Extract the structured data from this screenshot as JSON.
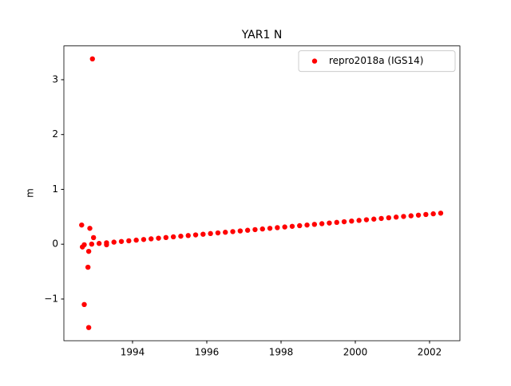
{
  "chart_data": {
    "type": "scatter",
    "title": "YAR1 N",
    "y_label": "m",
    "legend": "upper right",
    "xlim": [
      1992.151,
      2002.817
    ],
    "ylim": [
      -1.76,
      3.616
    ],
    "xticks": [
      1994,
      1996,
      1998,
      2000,
      2002
    ],
    "yticks": [
      {
        "value": -1,
        "label": "−1"
      },
      0,
      1,
      2,
      3
    ],
    "series": [
      {
        "name": "repro2018a (IGS14)",
        "color": "#ff0000",
        "x": [
          1992.7,
          1992.9,
          1993.1,
          1993.3,
          1993.5,
          1993.7,
          1993.9,
          1994.1,
          1994.3,
          1994.5,
          1994.7,
          1994.9,
          1995.1,
          1995.3,
          1995.5,
          1995.7,
          1995.9,
          1996.1,
          1996.3,
          1996.5,
          1996.7,
          1996.9,
          1997.1,
          1997.3,
          1997.5,
          1997.7,
          1997.9,
          1998.1,
          1998.3,
          1998.5,
          1998.7,
          1998.9,
          1999.1,
          1999.3,
          1999.5,
          1999.7,
          1999.9,
          2000.1,
          2000.3,
          2000.5,
          2000.7,
          2000.9,
          2001.1,
          2001.3,
          2001.5,
          2001.7,
          2001.9,
          2002.1,
          2002.3,
          1992.63,
          1992.7,
          1992.82,
          1992.8,
          1992.82,
          1992.85,
          1992.95,
          1992.92,
          1993.3,
          1992.65
        ],
        "values": [
          -0.01,
          0.002,
          0.014,
          0.026,
          0.038,
          0.05,
          0.062,
          0.074,
          0.086,
          0.098,
          0.11,
          0.122,
          0.134,
          0.146,
          0.158,
          0.17,
          0.182,
          0.194,
          0.206,
          0.218,
          0.23,
          0.242,
          0.254,
          0.266,
          0.278,
          0.29,
          0.302,
          0.314,
          0.326,
          0.338,
          0.35,
          0.362,
          0.374,
          0.386,
          0.398,
          0.41,
          0.422,
          0.434,
          0.446,
          0.458,
          0.47,
          0.482,
          0.494,
          0.506,
          0.518,
          0.53,
          0.542,
          0.554,
          0.566,
          0.35,
          -1.1,
          -1.52,
          -0.42,
          -0.13,
          0.29,
          0.12,
          3.38,
          -0.01,
          -0.05
        ]
      }
    ]
  }
}
